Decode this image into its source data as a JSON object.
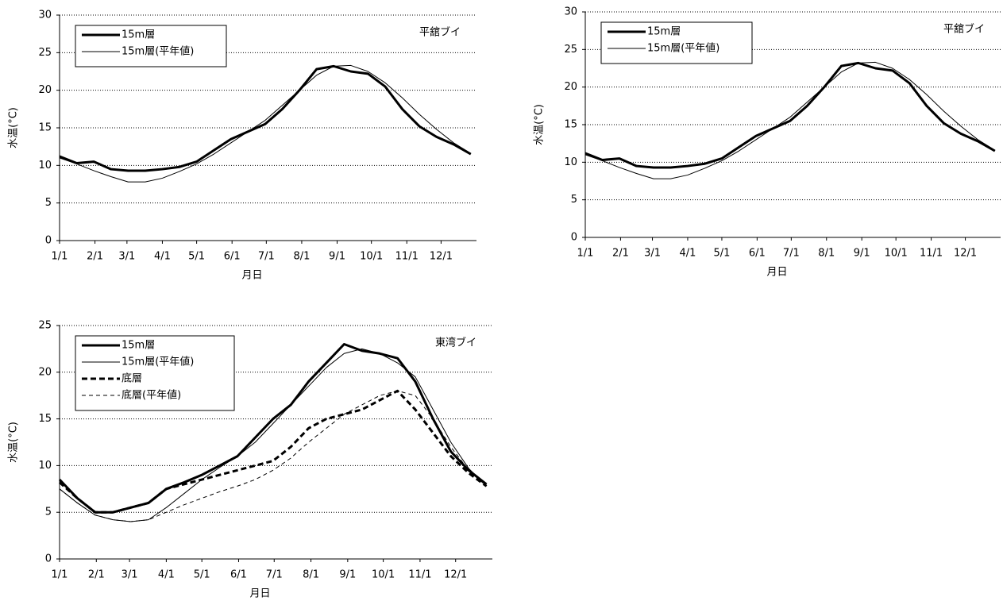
{
  "chart_data": [
    {
      "type": "line",
      "annotation": "平舘ブイ",
      "xlabel": "月日",
      "ylabel": "水温(°C)",
      "xlim": [
        0,
        365
      ],
      "ylim": [
        0,
        30
      ],
      "yticks": [
        0,
        5,
        10,
        15,
        20,
        25,
        30
      ],
      "grid": true,
      "legend": "upper-left",
      "xticks": [
        {
          "value": 0,
          "label": "1/1"
        },
        {
          "value": 31,
          "label": "2/1"
        },
        {
          "value": 59,
          "label": "3/1"
        },
        {
          "value": 90,
          "label": "4/1"
        },
        {
          "value": 120,
          "label": "5/1"
        },
        {
          "value": 151,
          "label": "6/1"
        },
        {
          "value": 181,
          "label": "7/1"
        },
        {
          "value": 212,
          "label": "8/1"
        },
        {
          "value": 243,
          "label": "9/1"
        },
        {
          "value": 273,
          "label": "10/1"
        },
        {
          "value": 304,
          "label": "11/1"
        },
        {
          "value": 334,
          "label": "12/1"
        }
      ],
      "x": [
        0,
        15,
        30,
        45,
        60,
        75,
        90,
        105,
        120,
        135,
        150,
        165,
        180,
        195,
        210,
        225,
        240,
        255,
        270,
        285,
        300,
        315,
        330,
        345,
        360
      ],
      "series": [
        {
          "name": "15m層",
          "color": "#000000",
          "width": 3,
          "dashed": false,
          "values": [
            11.2,
            10.3,
            10.5,
            9.5,
            9.3,
            9.3,
            9.5,
            9.8,
            10.5,
            12,
            13.5,
            14.5,
            15.5,
            17.5,
            20,
            22.8,
            23.2,
            22.5,
            22.2,
            20.5,
            17.5,
            15.2,
            13.8,
            12.8,
            11.5
          ]
        },
        {
          "name": "15m層(平年値)",
          "color": "#000000",
          "width": 1,
          "dashed": false,
          "values": [
            11,
            10.2,
            9.3,
            8.5,
            7.8,
            7.8,
            8.3,
            9.2,
            10.2,
            11.5,
            13,
            14.5,
            16,
            18,
            20,
            22,
            23.2,
            23.3,
            22.5,
            21,
            19,
            16.8,
            14.8,
            13,
            11.6
          ]
        }
      ]
    },
    {
      "type": "line",
      "annotation": "平舘ブイ",
      "xlabel": "月日",
      "ylabel": "水温(°C)",
      "xlim": [
        0,
        365
      ],
      "ylim": [
        0,
        30
      ],
      "yticks": [
        0,
        5,
        10,
        15,
        20,
        25,
        30
      ],
      "grid": true,
      "legend": "upper-left",
      "xticks": [
        {
          "value": 0,
          "label": "1/1"
        },
        {
          "value": 31,
          "label": "2/1"
        },
        {
          "value": 59,
          "label": "3/1"
        },
        {
          "value": 90,
          "label": "4/1"
        },
        {
          "value": 120,
          "label": "5/1"
        },
        {
          "value": 151,
          "label": "6/1"
        },
        {
          "value": 181,
          "label": "7/1"
        },
        {
          "value": 212,
          "label": "8/1"
        },
        {
          "value": 243,
          "label": "9/1"
        },
        {
          "value": 273,
          "label": "10/1"
        },
        {
          "value": 304,
          "label": "11/1"
        },
        {
          "value": 334,
          "label": "12/1"
        }
      ],
      "x": [
        0,
        15,
        30,
        45,
        60,
        75,
        90,
        105,
        120,
        135,
        150,
        165,
        180,
        195,
        210,
        225,
        240,
        255,
        270,
        285,
        300,
        315,
        330,
        345,
        360
      ],
      "series": [
        {
          "name": "15m層",
          "color": "#000000",
          "width": 3,
          "dashed": false,
          "values": [
            11.2,
            10.3,
            10.5,
            9.5,
            9.3,
            9.3,
            9.5,
            9.8,
            10.5,
            12,
            13.5,
            14.5,
            15.5,
            17.5,
            20,
            22.8,
            23.2,
            22.5,
            22.2,
            20.5,
            17.5,
            15.2,
            13.8,
            12.8,
            11.5
          ]
        },
        {
          "name": "15m層(平年値)",
          "color": "#000000",
          "width": 1,
          "dashed": false,
          "values": [
            11,
            10.2,
            9.3,
            8.5,
            7.8,
            7.8,
            8.3,
            9.2,
            10.2,
            11.5,
            13,
            14.5,
            16,
            18,
            20,
            22,
            23.2,
            23.3,
            22.5,
            21,
            19,
            16.8,
            14.8,
            13,
            11.6
          ]
        }
      ]
    },
    {
      "type": "line",
      "annotation": "東湾ブイ",
      "xlabel": "月日",
      "ylabel": "水温(°C)",
      "xlim": [
        0,
        365
      ],
      "ylim": [
        0,
        25
      ],
      "yticks": [
        0,
        5,
        10,
        15,
        20,
        25
      ],
      "grid": true,
      "legend": "upper-left",
      "xticks": [
        {
          "value": 0,
          "label": "1/1"
        },
        {
          "value": 31,
          "label": "2/1"
        },
        {
          "value": 59,
          "label": "3/1"
        },
        {
          "value": 90,
          "label": "4/1"
        },
        {
          "value": 120,
          "label": "5/1"
        },
        {
          "value": 151,
          "label": "6/1"
        },
        {
          "value": 181,
          "label": "7/1"
        },
        {
          "value": 212,
          "label": "8/1"
        },
        {
          "value": 243,
          "label": "9/1"
        },
        {
          "value": 273,
          "label": "10/1"
        },
        {
          "value": 304,
          "label": "11/1"
        },
        {
          "value": 334,
          "label": "12/1"
        }
      ],
      "x": [
        0,
        15,
        30,
        45,
        60,
        75,
        90,
        105,
        120,
        135,
        150,
        165,
        180,
        195,
        210,
        225,
        240,
        255,
        270,
        285,
        300,
        315,
        330,
        345,
        360
      ],
      "series": [
        {
          "name": "15m層",
          "color": "#000000",
          "width": 3,
          "dashed": false,
          "values": [
            8.5,
            6.5,
            5,
            5,
            5.5,
            6,
            7.5,
            8.2,
            9,
            10,
            11,
            13,
            15,
            16.5,
            19,
            21,
            23,
            22.3,
            22,
            21.5,
            19,
            15,
            11.5,
            9.5,
            8
          ]
        },
        {
          "name": "15m層(平年値)",
          "color": "#000000",
          "width": 1,
          "dashed": false,
          "values": [
            7.5,
            6,
            4.7,
            4.2,
            4,
            4.2,
            5.5,
            7,
            8.5,
            9.8,
            11,
            12.5,
            14.5,
            16.5,
            18.5,
            20.5,
            22,
            22.5,
            22,
            21,
            19.5,
            16,
            12.5,
            9.7,
            7.8
          ]
        },
        {
          "name": "底層",
          "color": "#000000",
          "width": 3,
          "dashed": true,
          "values": [
            8.2,
            6.5,
            5,
            5,
            5.5,
            6,
            7.5,
            8,
            8.5,
            9,
            9.5,
            10,
            10.5,
            12,
            14,
            15,
            15.5,
            16,
            17,
            18,
            16,
            13.5,
            11,
            9.2,
            7.8
          ]
        },
        {
          "name": "底層(平年値)",
          "color": "#000000",
          "width": 1,
          "dashed": true,
          "values": [
            7.5,
            6,
            4.7,
            4.2,
            4,
            4.2,
            5,
            5.8,
            6.5,
            7.2,
            7.8,
            8.5,
            9.5,
            10.8,
            12.5,
            14,
            15.5,
            16.5,
            17.5,
            18,
            17.5,
            15,
            12,
            9.5,
            7.8
          ]
        }
      ]
    }
  ]
}
